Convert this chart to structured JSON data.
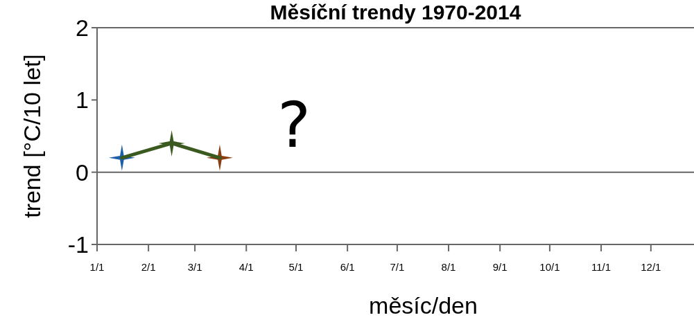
{
  "chart_data": {
    "type": "line",
    "title": "Měsíční trendy 1970-2014",
    "xlabel": "měsíc/den",
    "ylabel": "trend [°C/10 let]",
    "x": [
      "--01-16",
      "--02-15",
      "--03-16"
    ],
    "series": [
      {
        "color": "#3b5a1f",
        "colors": [
          "#1f5ea8",
          "#3b5a1f",
          "#8a3e12"
        ],
        "values": [
          0.2,
          0.4,
          0.2
        ]
      }
    ],
    "xlim": [
      "--01-01",
      "--12-27"
    ],
    "xticks": [
      {
        "value": "--01-01",
        "label": "1/1"
      },
      {
        "value": "--02-01",
        "label": "2/1"
      },
      {
        "value": "--03-01",
        "label": "3/1"
      },
      {
        "value": "--04-01",
        "label": "4/1"
      },
      {
        "value": "--05-01",
        "label": "5/1"
      },
      {
        "value": "--06-01",
        "label": "6/1"
      },
      {
        "value": "--07-01",
        "label": "7/1"
      },
      {
        "value": "--08-01",
        "label": "8/1"
      },
      {
        "value": "--09-01",
        "label": "9/1"
      },
      {
        "value": "--10-01",
        "label": "10/1"
      },
      {
        "value": "--11-01",
        "label": "11/1"
      },
      {
        "value": "--12-01",
        "label": "12/1"
      }
    ],
    "ylim": [
      -1,
      2
    ],
    "yticks": [
      -1,
      0,
      1,
      2
    ],
    "ref_lines": [
      {
        "axis": "y",
        "value": 0,
        "color": "#666666"
      }
    ],
    "annotations": [
      "?"
    ],
    "marker": "star",
    "grid": false
  }
}
